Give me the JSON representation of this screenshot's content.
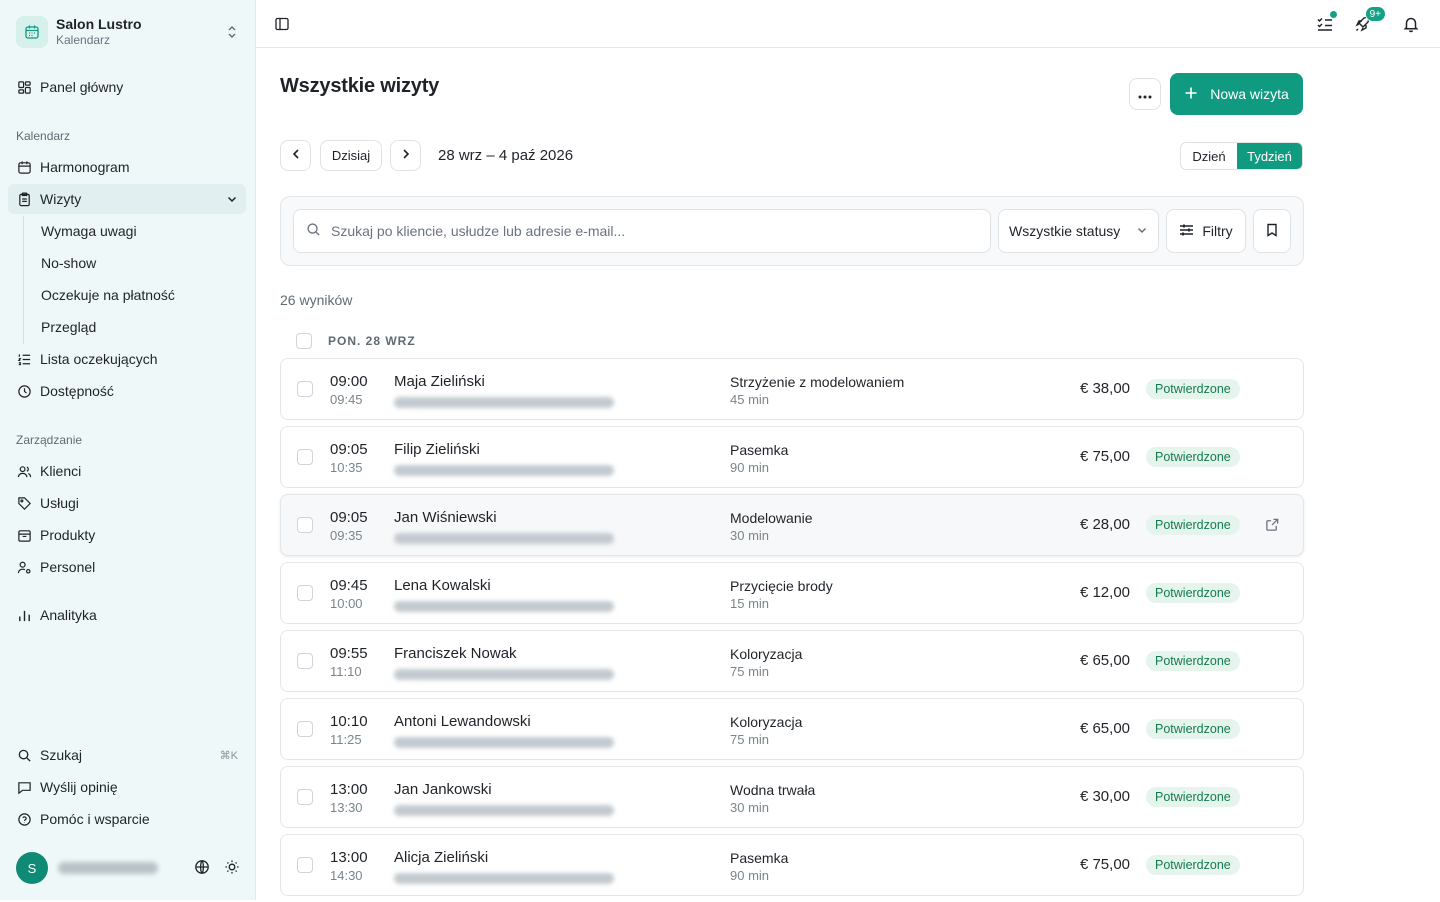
{
  "app": {
    "name": "Salon Lustro",
    "module": "Kalendarz"
  },
  "sidebar": {
    "dashboard": "Panel główny",
    "calendar_section": "Kalendarz",
    "schedule": "Harmonogram",
    "appointments": "Wizyty",
    "sub_items": [
      "Wymaga uwagi",
      "No-show",
      "Oczekuje na płatność",
      "Przegląd"
    ],
    "waitlist": "Lista oczekujących",
    "availability": "Dostępność",
    "management_section": "Zarządzanie",
    "clients": "Klienci",
    "services": "Usługi",
    "products": "Produkty",
    "staff": "Personel",
    "analytics": "Analityka",
    "search": "Szukaj",
    "search_shortcut": "⌘K",
    "feedback": "Wyślij opinię",
    "help": "Pomóc i wsparcie",
    "user_initial": "S"
  },
  "topbar": {
    "notif_badge": "9+"
  },
  "page": {
    "title": "Wszystkie wizyty",
    "new_button": "Nowa wizyta",
    "today": "Dzisiaj",
    "range": "28 wrz – 4 paź 2026",
    "view_day": "Dzień",
    "view_week": "Tydzień",
    "search_placeholder": "Szukaj po kliencie, usłudze lub adresie e-mail...",
    "status_filter": "Wszystkie statusy",
    "filters": "Filtry",
    "results": "26 wyników",
    "day_header": "PON. 28 WRZ"
  },
  "appointments": [
    {
      "start": "09:00",
      "end": "09:45",
      "client": "Maja Zieliński",
      "service": "Strzyżenie z modelowaniem",
      "duration": "45 min",
      "price": "€ 38,00",
      "status": "Potwierdzone"
    },
    {
      "start": "09:05",
      "end": "10:35",
      "client": "Filip Zieliński",
      "service": "Pasemka",
      "duration": "90 min",
      "price": "€ 75,00",
      "status": "Potwierdzone"
    },
    {
      "start": "09:05",
      "end": "09:35",
      "client": "Jan Wiśniewski",
      "service": "Modelowanie",
      "duration": "30 min",
      "price": "€ 28,00",
      "status": "Potwierdzone"
    },
    {
      "start": "09:45",
      "end": "10:00",
      "client": "Lena Kowalski",
      "service": "Przycięcie brody",
      "duration": "15 min",
      "price": "€ 12,00",
      "status": "Potwierdzone"
    },
    {
      "start": "09:55",
      "end": "11:10",
      "client": "Franciszek Nowak",
      "service": "Koloryzacja",
      "duration": "75 min",
      "price": "€ 65,00",
      "status": "Potwierdzone"
    },
    {
      "start": "10:10",
      "end": "11:25",
      "client": "Antoni Lewandowski",
      "service": "Koloryzacja",
      "duration": "75 min",
      "price": "€ 65,00",
      "status": "Potwierdzone"
    },
    {
      "start": "13:00",
      "end": "13:30",
      "client": "Jan Jankowski",
      "service": "Wodna trwała",
      "duration": "30 min",
      "price": "€ 30,00",
      "status": "Potwierdzone"
    },
    {
      "start": "13:00",
      "end": "14:30",
      "client": "Alicja Zieliński",
      "service": "Pasemka",
      "duration": "90 min",
      "price": "€ 75,00",
      "status": "Potwierdzone"
    }
  ]
}
